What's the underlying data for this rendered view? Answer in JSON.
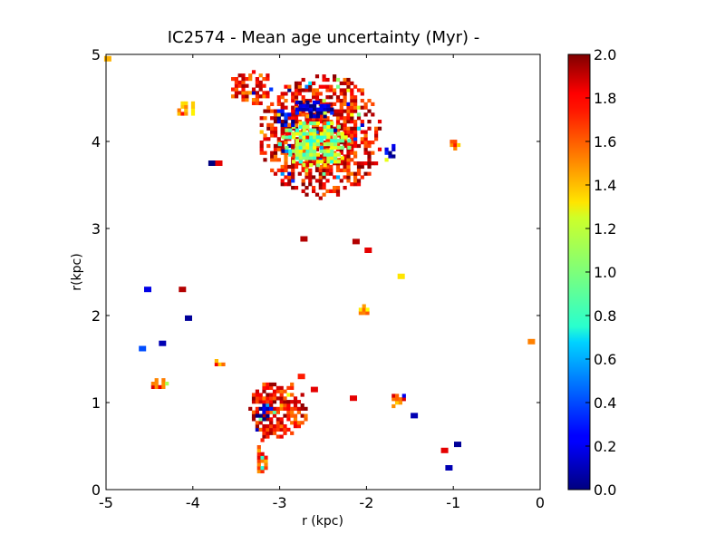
{
  "chart_data": {
    "type": "heatmap",
    "title": "IC2574 - Mean age uncertainty (Myr) -",
    "xlabel": "r (kpc)",
    "ylabel": "r(kpc)",
    "xlim": [
      -5,
      0
    ],
    "ylim": [
      0,
      5
    ],
    "x_ticks": [
      "-5",
      "-4",
      "-3",
      "-2",
      "-1",
      "0"
    ],
    "y_ticks": [
      "0",
      "1",
      "2",
      "3",
      "4",
      "5"
    ],
    "colorbar": {
      "range": [
        0.0,
        2.0
      ],
      "colormap": "jet",
      "tick_labels": [
        "0.0",
        "0.2",
        "0.4",
        "0.6",
        "0.8",
        "1.0",
        "1.2",
        "1.4",
        "1.6",
        "1.8",
        "2.0"
      ]
    },
    "regions": [
      {
        "name": "north-complex-rim",
        "x": -2.55,
        "y": 4.05,
        "rx": 0.72,
        "ry": 0.72,
        "value": 1.75
      },
      {
        "name": "north-complex-center",
        "x": -2.6,
        "y": 3.95,
        "rx": 0.42,
        "ry": 0.28,
        "value": 1.05
      },
      {
        "name": "north-complex-blue-1",
        "x": -2.65,
        "y": 4.35,
        "rx": 0.25,
        "ry": 0.12,
        "value": 0.1
      },
      {
        "name": "north-complex-blue-2",
        "x": -2.95,
        "y": 4.25,
        "rx": 0.12,
        "ry": 0.12,
        "value": 0.15
      },
      {
        "name": "north-complex-blue-3",
        "x": -1.75,
        "y": 3.85,
        "rx": 0.08,
        "ry": 0.12,
        "value": 0.1
      },
      {
        "name": "northwest-arm",
        "x": -3.35,
        "y": 4.6,
        "rx": 0.25,
        "ry": 0.22,
        "value": 1.7
      },
      {
        "name": "west-knot",
        "x": -4.1,
        "y": 4.35,
        "rx": 0.16,
        "ry": 0.09,
        "value": 1.5
      },
      {
        "name": "south-complex",
        "x": -3.05,
        "y": 0.9,
        "rx": 0.35,
        "ry": 0.35,
        "value": 1.75
      },
      {
        "name": "south-complex-blue",
        "x": -3.2,
        "y": 0.85,
        "rx": 0.12,
        "ry": 0.1,
        "value": 0.05
      },
      {
        "name": "south-tail",
        "x": -3.22,
        "y": 0.35,
        "rx": 0.08,
        "ry": 0.2,
        "value": 1.6
      },
      {
        "name": "east-knot-1",
        "x": -1.65,
        "y": 1.0,
        "rx": 0.1,
        "ry": 0.1,
        "value": 1.6
      },
      {
        "name": "east-knot-2",
        "x": -1.0,
        "y": 3.95,
        "rx": 0.08,
        "ry": 0.05,
        "value": 1.5
      },
      {
        "name": "center-knot",
        "x": -2.05,
        "y": 2.05,
        "rx": 0.08,
        "ry": 0.08,
        "value": 1.4
      },
      {
        "name": "west-small-1",
        "x": -4.4,
        "y": 1.2,
        "rx": 0.12,
        "ry": 0.08,
        "value": 1.6
      },
      {
        "name": "west-small-2",
        "x": -3.72,
        "y": 1.45,
        "rx": 0.07,
        "ry": 0.07,
        "value": 1.6
      }
    ],
    "specks": [
      {
        "x": -4.05,
        "y": 1.97,
        "value": 0.05
      },
      {
        "x": -4.52,
        "y": 2.3,
        "value": 0.2
      },
      {
        "x": -4.35,
        "y": 1.68,
        "value": 0.1
      },
      {
        "x": -3.78,
        "y": 3.75,
        "value": 0.0
      },
      {
        "x": -3.7,
        "y": 3.75,
        "value": 1.8
      },
      {
        "x": -2.72,
        "y": 2.88,
        "value": 1.9
      },
      {
        "x": -2.12,
        "y": 2.85,
        "value": 1.9
      },
      {
        "x": -1.98,
        "y": 2.75,
        "value": 1.8
      },
      {
        "x": -1.6,
        "y": 2.45,
        "value": 1.3
      },
      {
        "x": -1.45,
        "y": 0.85,
        "value": 0.1
      },
      {
        "x": -0.95,
        "y": 0.52,
        "value": 0.05
      },
      {
        "x": -1.05,
        "y": 0.25,
        "value": 0.1
      },
      {
        "x": -2.6,
        "y": 1.15,
        "value": 1.8
      },
      {
        "x": -2.75,
        "y": 1.3,
        "value": 1.7
      },
      {
        "x": -4.58,
        "y": 1.62,
        "value": 0.4
      },
      {
        "x": -4.12,
        "y": 2.3,
        "value": 1.9
      },
      {
        "x": -1.1,
        "y": 0.45,
        "value": 1.8
      },
      {
        "x": -0.1,
        "y": 1.7,
        "value": 1.5
      },
      {
        "x": -4.98,
        "y": 4.95,
        "value": 1.4
      },
      {
        "x": -2.15,
        "y": 1.05,
        "value": 1.8
      }
    ]
  }
}
